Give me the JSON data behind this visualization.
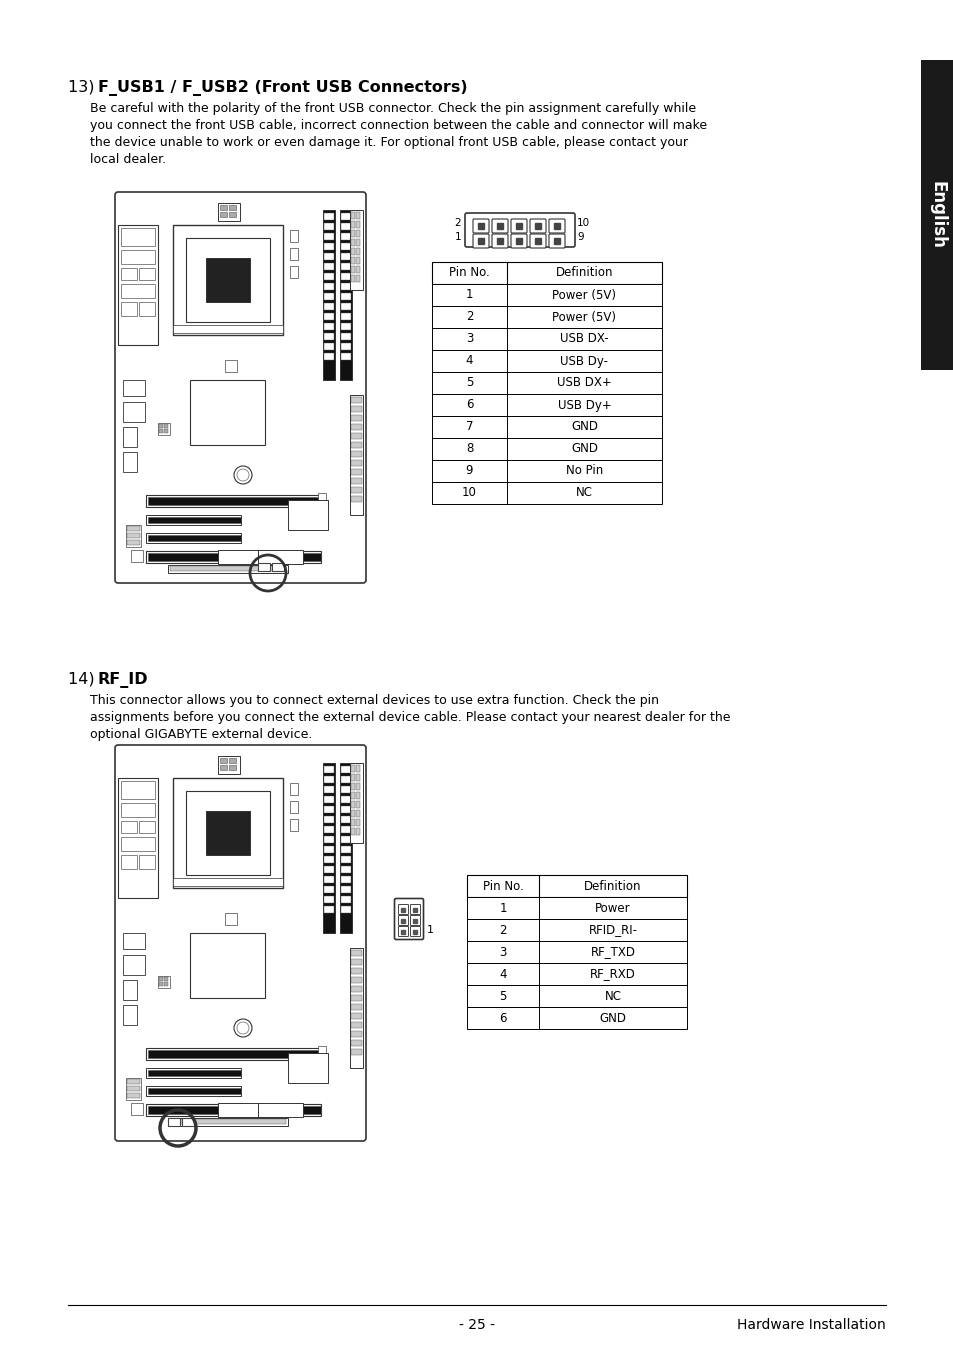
{
  "bg_color": "#ffffff",
  "section13_title_prefix": "13)  ",
  "section13_title_bold": "F_USB1 / F_USB2 (Front USB Connectors)",
  "section13_body": "Be careful with the polarity of the front USB connector. Check the pin assignment carefully while\nyou connect the front USB cable, incorrect connection between the cable and connector will make\nthe device unable to work or even damage it. For optional front USB cable, please contact your\nlocal dealer.",
  "section14_title_prefix": "14)  ",
  "section14_title_bold": "RF_ID",
  "section14_body": "This connector allows you to connect external devices to use extra function. Check the pin\nassignments before you connect the external device cable. Please contact your nearest dealer for the\noptional GIGABYTE external device.",
  "usb_table_pins": [
    "1",
    "2",
    "3",
    "4",
    "5",
    "6",
    "7",
    "8",
    "9",
    "10"
  ],
  "usb_table_defs": [
    "Power (5V)",
    "Power (5V)",
    "USB DX-",
    "USB Dy-",
    "USB DX+",
    "USB Dy+",
    "GND",
    "GND",
    "No Pin",
    "NC"
  ],
  "rfid_table_pins": [
    "1",
    "2",
    "3",
    "4",
    "5",
    "6"
  ],
  "rfid_table_defs": [
    "Power",
    "RFID_RI-",
    "RF_TXD",
    "RF_RXD",
    "NC",
    "GND"
  ],
  "footer_left": "- 25 -",
  "footer_right": "Hardware Installation",
  "tab_text": "English",
  "tab_bg": "#1a1a1a",
  "tab_text_color": "#ffffff"
}
